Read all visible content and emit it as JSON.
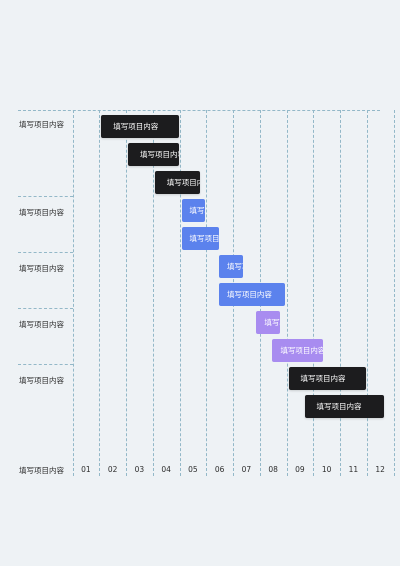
{
  "chart_data": {
    "type": "gantt",
    "columns": [
      "01",
      "02",
      "03",
      "04",
      "05",
      "06",
      "07",
      "08",
      "09",
      "10",
      "11",
      "12"
    ],
    "groups": [
      {
        "label": "填写项目内容",
        "tasks": [
          0,
          1,
          2
        ]
      },
      {
        "label": "填写项目内容",
        "tasks": [
          3,
          4
        ]
      },
      {
        "label": "填写项目内容",
        "tasks": [
          5,
          6
        ]
      },
      {
        "label": "填写项目内容",
        "tasks": [
          7,
          8
        ]
      },
      {
        "label": "填写项目内容",
        "tasks": [
          9,
          10
        ]
      }
    ],
    "tasks": [
      {
        "label": "填写项目内容",
        "start": 1.0,
        "end": 4.0,
        "color": "#1c1c1e"
      },
      {
        "label": "填写项目内容",
        "start": 2.0,
        "end": 4.0,
        "color": "#1c1c1e"
      },
      {
        "label": "填写项目内容",
        "start": 3.0,
        "end": 4.8,
        "color": "#1c1c1e"
      },
      {
        "label": "填写项目内容",
        "start": 4.0,
        "end": 5.0,
        "color": "#5b82ed"
      },
      {
        "label": "填写项目内容",
        "start": 4.0,
        "end": 5.5,
        "color": "#5b82ed"
      },
      {
        "label": "填写项目内容",
        "start": 5.4,
        "end": 6.4,
        "color": "#5b82ed"
      },
      {
        "label": "填写项目内容",
        "start": 5.4,
        "end": 8.0,
        "color": "#5b82ed"
      },
      {
        "label": "填写项目内容",
        "start": 6.8,
        "end": 7.8,
        "color": "#a88cf0"
      },
      {
        "label": "填写项目内容",
        "start": 7.4,
        "end": 9.4,
        "color": "#a88cf0"
      },
      {
        "label": "填写项目内容",
        "start": 8.0,
        "end": 11.0,
        "color": "#1c1c1e"
      },
      {
        "label": "填写项目内容",
        "start": 8.6,
        "end": 11.7,
        "color": "#1c1c1e"
      }
    ],
    "footer_label": "填写项目内容"
  }
}
